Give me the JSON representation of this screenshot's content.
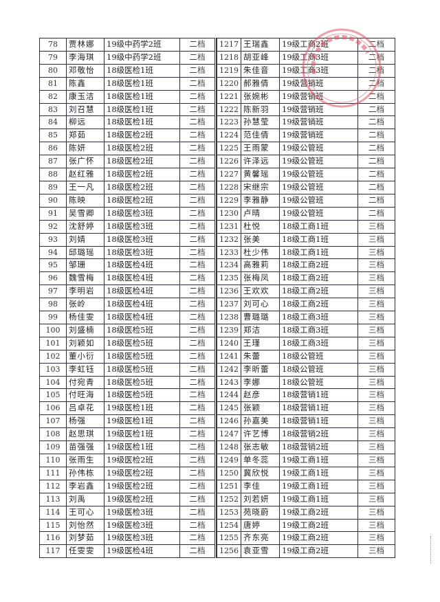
{
  "left_rows": [
    [
      "78",
      "贾林娜",
      "19级中药学2班",
      "二档"
    ],
    [
      "79",
      "李海琪",
      "19级中药学2班",
      "二档"
    ],
    [
      "80",
      "邓敬怡",
      "18级医检1班",
      "二档"
    ],
    [
      "81",
      "陈鑫",
      "18级医检1班",
      "二档"
    ],
    [
      "82",
      "康玉洁",
      "18级医检1班",
      "二档"
    ],
    [
      "83",
      "刘召慧",
      "18级医检1班",
      "二档"
    ],
    [
      "84",
      "柳远",
      "18级医检1班",
      "二档"
    ],
    [
      "85",
      "郑茹",
      "18级医检2班",
      "二档"
    ],
    [
      "86",
      "陈妍",
      "18级医检2班",
      "二档"
    ],
    [
      "87",
      "张广怀",
      "18级医检2班",
      "二档"
    ],
    [
      "88",
      "赵红雅",
      "18级医检2班",
      "二档"
    ],
    [
      "89",
      "王一凡",
      "18级医检2班",
      "二档"
    ],
    [
      "90",
      "陈映",
      "18级医检2班",
      "二档"
    ],
    [
      "91",
      "吴雪卿",
      "18级医检3班",
      "二档"
    ],
    [
      "92",
      "沈舒婷",
      "18级医检3班",
      "二档"
    ],
    [
      "93",
      "刘婧",
      "18级医检3班",
      "二档"
    ],
    [
      "94",
      "邱璐瑶",
      "18级医检3班",
      "二档"
    ],
    [
      "95",
      "邹珊",
      "18级医检4班",
      "二档"
    ],
    [
      "96",
      "魏雪梅",
      "18级医检4班",
      "二档"
    ],
    [
      "97",
      "李明岩",
      "18级医检4班",
      "二档"
    ],
    [
      "98",
      "张岭",
      "18级医检4班",
      "二档"
    ],
    [
      "99",
      "杨佳雯",
      "18级医检4班",
      "二档"
    ],
    [
      "100",
      "刘盛楠",
      "18级医检5班",
      "二档"
    ],
    [
      "101",
      "刘颖如",
      "18级医检5班",
      "二档"
    ],
    [
      "102",
      "董小衍",
      "18级医检5班",
      "二档"
    ],
    [
      "103",
      "李虹钰",
      "18级医检5班",
      "二档"
    ],
    [
      "104",
      "付宛青",
      "18级医检5班",
      "二档"
    ],
    [
      "105",
      "付旺海",
      "18级医检5班",
      "二档"
    ],
    [
      "106",
      "吕卓花",
      "19级医检1班",
      "二档"
    ],
    [
      "107",
      "杨强",
      "19级医检1班",
      "二档"
    ],
    [
      "108",
      "赵思琪",
      "19级医检1班",
      "二档"
    ],
    [
      "109",
      "苗强强",
      "19级医检1班",
      "二档"
    ],
    [
      "110",
      "张雨生",
      "19级医检2班",
      "二档"
    ],
    [
      "111",
      "孙伟栋",
      "19级医检2班",
      "二档"
    ],
    [
      "112",
      "李岩鑫",
      "19级医检2班",
      "二档"
    ],
    [
      "113",
      "刘禹",
      "19级医检2班",
      "二档"
    ],
    [
      "114",
      "王可心",
      "19级医检3班",
      "二档"
    ],
    [
      "115",
      "刘怡然",
      "19级医检3班",
      "二档"
    ],
    [
      "116",
      "刘梦茹",
      "19级医检3班",
      "二档"
    ],
    [
      "117",
      "任雯雯",
      "19级医检4班",
      "二档"
    ]
  ],
  "right_rows": [
    [
      "1217",
      "王瑞鑫",
      "19级工商2班",
      "二档"
    ],
    [
      "1218",
      "胡亚峰",
      "19级工商3班",
      "二档"
    ],
    [
      "1219",
      "朱佳音",
      "19级工商3班",
      "二档"
    ],
    [
      "1220",
      "郝雅倩",
      "19级营销班",
      "二档"
    ],
    [
      "1221",
      "张婉彬",
      "19级营销班",
      "二档"
    ],
    [
      "1222",
      "陈新羽",
      "19级营销班",
      "二档"
    ],
    [
      "1223",
      "孙慧莹",
      "19级营销班",
      "二档"
    ],
    [
      "1224",
      "范佳倩",
      "19级营销班",
      "二档"
    ],
    [
      "1225",
      "王雨蒙",
      "19级公管班",
      "二档"
    ],
    [
      "1226",
      "许泽远",
      "19级公管班",
      "二档"
    ],
    [
      "1227",
      "黄馨瑶",
      "19级公管班",
      "二档"
    ],
    [
      "1228",
      "宋继宗",
      "19级公管班",
      "二档"
    ],
    [
      "1229",
      "李雅静",
      "19级公管班",
      "二档"
    ],
    [
      "1230",
      "卢晴",
      "19级公管班",
      "二档"
    ],
    [
      "1231",
      "杜悦",
      "18级工商1班",
      "三档"
    ],
    [
      "1232",
      "张美",
      "18级工商1班",
      "三档"
    ],
    [
      "1233",
      "杜少伟",
      "18级工商1班",
      "三档"
    ],
    [
      "1234",
      "高雅莉",
      "18级工商2班",
      "三档"
    ],
    [
      "1235",
      "张梅凤",
      "18级工商2班",
      "三档"
    ],
    [
      "1236",
      "王欢欢",
      "18级工商2班",
      "三档"
    ],
    [
      "1237",
      "刘可心",
      "18级工商2班",
      "三档"
    ],
    [
      "1238",
      "曹璐璐",
      "18级工商3班",
      "三档"
    ],
    [
      "1239",
      "郑洁",
      "18级工商3班",
      "三档"
    ],
    [
      "1240",
      "王瑾",
      "18级工商3班",
      "三档"
    ],
    [
      "1241",
      "朱蕾",
      "18级公管班",
      "三档"
    ],
    [
      "1242",
      "李昕蕾",
      "18级公管班",
      "三档"
    ],
    [
      "1243",
      "李娜",
      "18级公管班",
      "三档"
    ],
    [
      "1244",
      "赵彦",
      "18级营销1班",
      "三档"
    ],
    [
      "1245",
      "张颖",
      "18级营销1班",
      "三档"
    ],
    [
      "1246",
      "孙嘉美",
      "18级营销1班",
      "三档"
    ],
    [
      "1247",
      "许艺博",
      "18级营销2班",
      "三档"
    ],
    [
      "1248",
      "张志敏",
      "18级营销2班",
      "三档"
    ],
    [
      "1249",
      "单冬蕊",
      "19级工商1班",
      "三档"
    ],
    [
      "1250",
      "冀欣悦",
      "19级工商1班",
      "三档"
    ],
    [
      "1251",
      "李佳",
      "19级工商1班",
      "三档"
    ],
    [
      "1252",
      "刘若妍",
      "19级工商1班",
      "三档"
    ],
    [
      "1253",
      "苑晓蔚",
      "19级工商2班",
      "三档"
    ],
    [
      "1254",
      "唐婷",
      "19级工商2班",
      "三档"
    ],
    [
      "1255",
      "齐东亮",
      "19级工商2班",
      "三档"
    ],
    [
      "1256",
      "袁亚雪",
      "19级工商2班",
      "三档"
    ]
  ],
  "stamp_color": "#e05060"
}
